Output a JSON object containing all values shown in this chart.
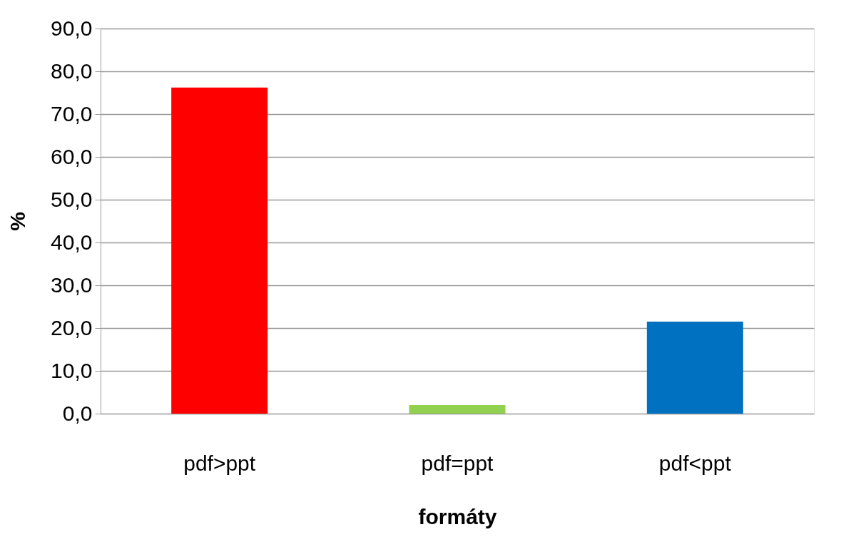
{
  "chart_data": {
    "type": "bar",
    "categories": [
      "pdf>ppt",
      "pdf=ppt",
      "pdf<ppt"
    ],
    "values": [
      76.2,
      2.0,
      21.5
    ],
    "colors": [
      "#ff0000",
      "#92d050",
      "#0070c0"
    ],
    "xlabel": "formáty",
    "ylabel": "%",
    "ylim": [
      0,
      90
    ],
    "yticks": [
      {
        "value": 0,
        "label": "0,0"
      },
      {
        "value": 10,
        "label": "10,0"
      },
      {
        "value": 20,
        "label": "20,0"
      },
      {
        "value": 30,
        "label": "30,0"
      },
      {
        "value": 40,
        "label": "40,0"
      },
      {
        "value": 50,
        "label": "50,0"
      },
      {
        "value": 60,
        "label": "60,0"
      },
      {
        "value": 70,
        "label": "70,0"
      },
      {
        "value": 80,
        "label": "80,0"
      },
      {
        "value": 90,
        "label": "90,0"
      }
    ],
    "grid": "y"
  }
}
